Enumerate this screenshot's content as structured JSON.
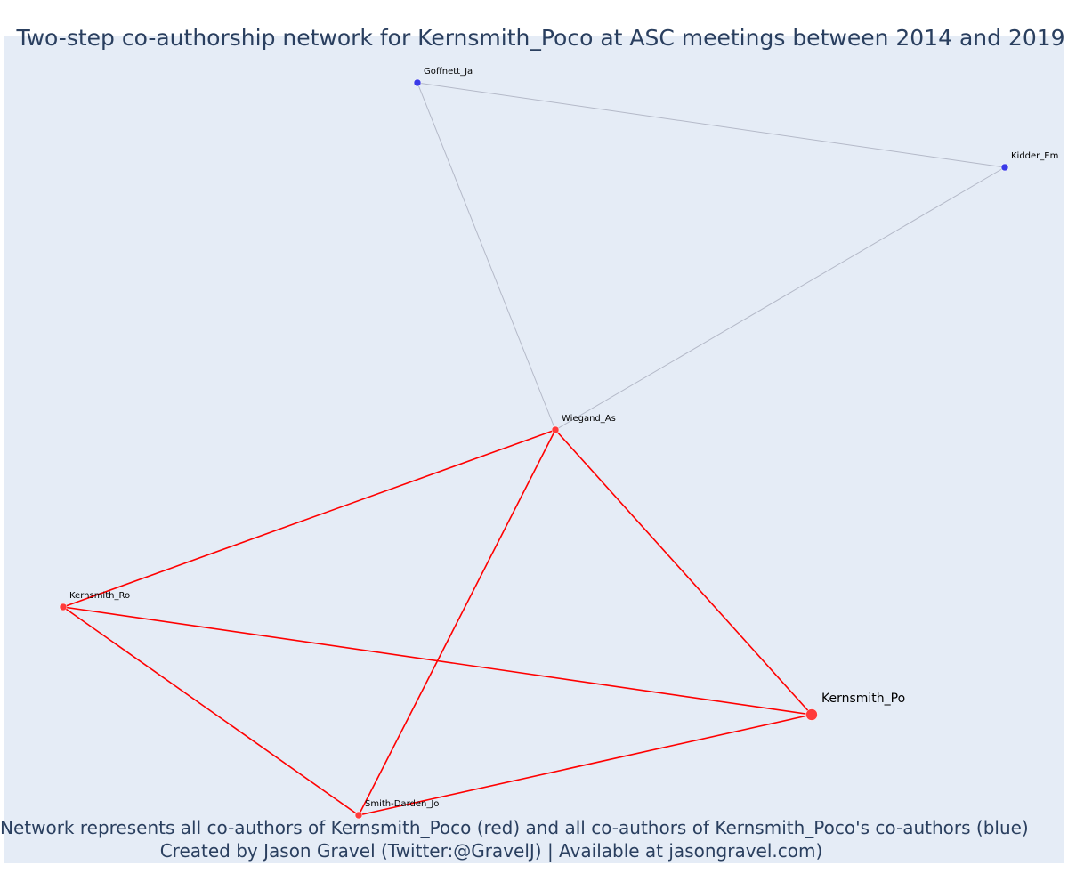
{
  "title": "Two-step co-authorship network for Kernsmith_Poco at ASC meetings between 2014 and 2019",
  "captions": {
    "line1": "Network represents all co-authors of Kernsmith_Poco (red) and all co-authors of Kernsmith_Poco's co-authors (blue)",
    "line2": "Created by Jason Gravel (Twitter:@GravelJ) | Available at jasongravel.com)"
  },
  "colors": {
    "background": "#e5ecf6",
    "coauthor_node": "#ff3b3b",
    "second_step_node": "#3a3ae8",
    "coauthor_edge": "#ff0000",
    "second_step_edge": "#b4b9c8",
    "text": "#2a3f5f"
  },
  "nodes": [
    {
      "id": "Goffnett_Ja",
      "label": "Goffnett_Ja",
      "group": "second_step",
      "focal": false
    },
    {
      "id": "Kidder_Em",
      "label": "Kidder_Em",
      "group": "second_step",
      "focal": false
    },
    {
      "id": "Wiegand_As",
      "label": "Wiegand_As",
      "group": "coauthor",
      "focal": false
    },
    {
      "id": "Kernsmith_Ro",
      "label": "Kernsmith_Ro",
      "group": "coauthor",
      "focal": false
    },
    {
      "id": "Kernsmith_Po",
      "label": "Kernsmith_Po",
      "group": "coauthor",
      "focal": true
    },
    {
      "id": "Smith-Darden_Jo",
      "label": "Smith-Darden_Jo",
      "group": "coauthor",
      "focal": false
    }
  ],
  "edges": [
    {
      "source": "Goffnett_Ja",
      "target": "Kidder_Em",
      "group": "second_step"
    },
    {
      "source": "Goffnett_Ja",
      "target": "Wiegand_As",
      "group": "second_step"
    },
    {
      "source": "Kidder_Em",
      "target": "Wiegand_As",
      "group": "second_step"
    },
    {
      "source": "Wiegand_As",
      "target": "Kernsmith_Ro",
      "group": "coauthor"
    },
    {
      "source": "Wiegand_As",
      "target": "Kernsmith_Po",
      "group": "coauthor"
    },
    {
      "source": "Wiegand_As",
      "target": "Smith-Darden_Jo",
      "group": "coauthor"
    },
    {
      "source": "Kernsmith_Ro",
      "target": "Kernsmith_Po",
      "group": "coauthor"
    },
    {
      "source": "Kernsmith_Ro",
      "target": "Smith-Darden_Jo",
      "group": "coauthor"
    },
    {
      "source": "Smith-Darden_Jo",
      "target": "Kernsmith_Po",
      "group": "coauthor"
    }
  ]
}
